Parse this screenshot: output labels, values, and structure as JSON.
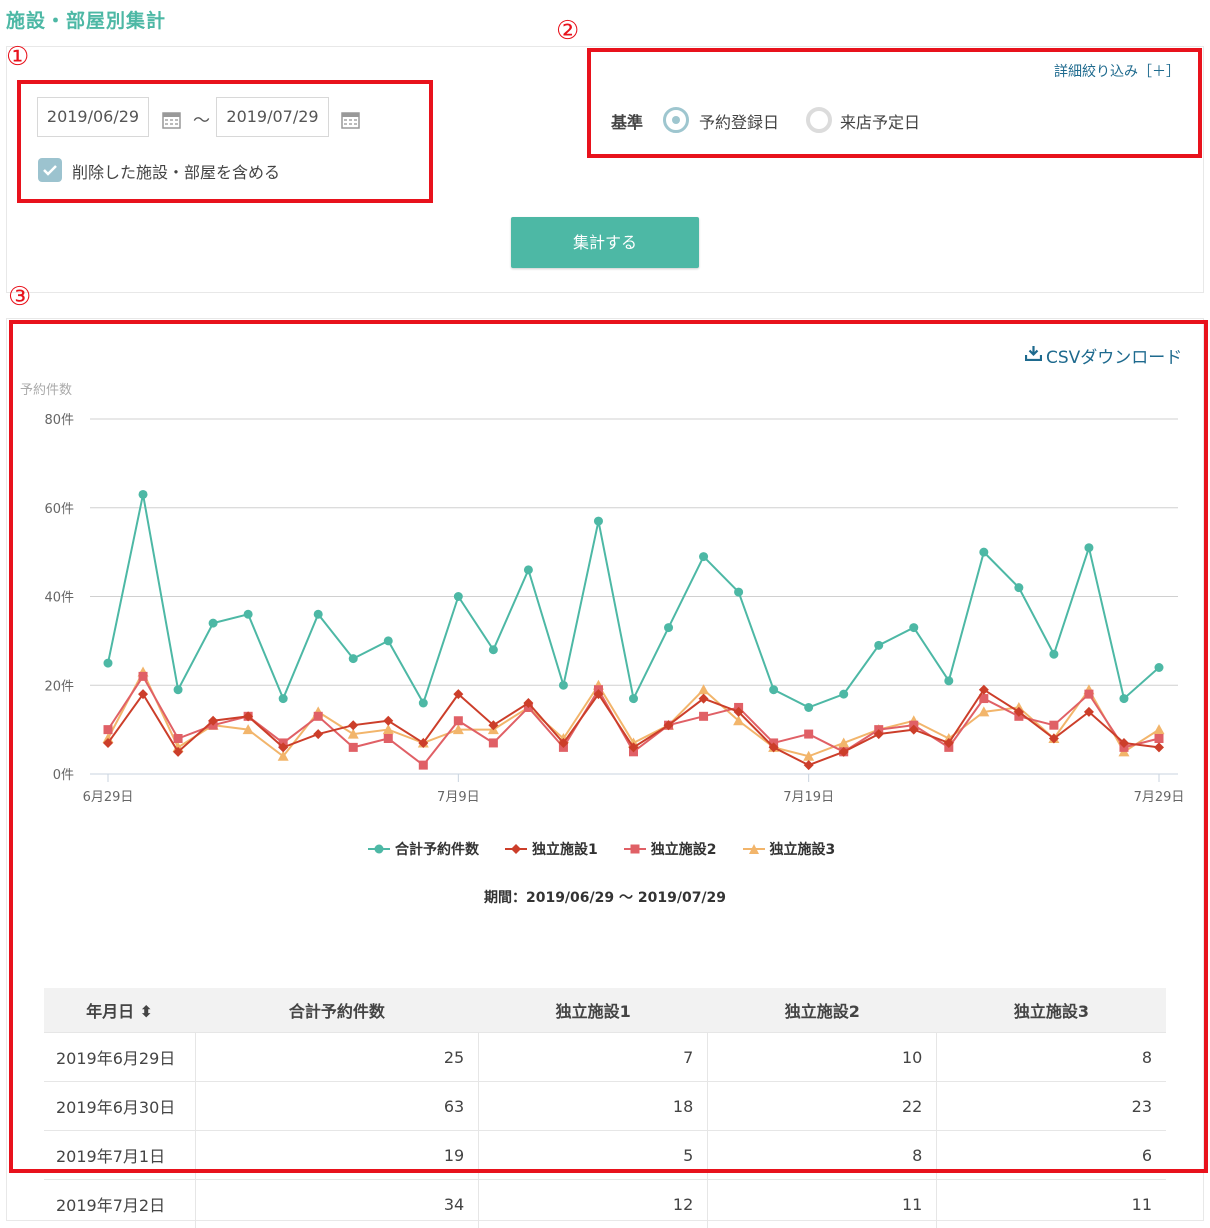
{
  "page_title": "施設・部屋別集計",
  "markers": {
    "one": "①",
    "two": "②",
    "three": "③"
  },
  "filters": {
    "start_date": "2019/06/29",
    "end_date": "2019/07/29",
    "separator": "～",
    "include_deleted_label": "削除した施設・部屋を含める",
    "include_deleted_checked": true,
    "detail_filter_link": "詳細絞り込み［＋］",
    "basis_label": "基準",
    "basis_options": [
      {
        "label": "予約登録日",
        "selected": true
      },
      {
        "label": "来店予定日",
        "selected": false
      }
    ],
    "submit_label": "集計する"
  },
  "csv_download_label": "CSVダウンロード",
  "colors": {
    "accent": "#4db8a5",
    "annotation_red": "#e8121c",
    "series1": "#4db8a5",
    "series2": "#cc3e2a",
    "series3": "#e06066",
    "series4": "#f2b56b"
  },
  "chart_data": {
    "type": "line",
    "ylabel": "予約件数",
    "ylim": [
      0,
      80
    ],
    "y_ticks": [
      "0件",
      "20件",
      "40件",
      "60件",
      "80件"
    ],
    "x_ticks": [
      "6月29日",
      "7月9日",
      "7月19日",
      "7月29日"
    ],
    "x": [
      "2019-06-29",
      "2019-06-30",
      "2019-07-01",
      "2019-07-02",
      "2019-07-03",
      "2019-07-04",
      "2019-07-05",
      "2019-07-06",
      "2019-07-07",
      "2019-07-08",
      "2019-07-09",
      "2019-07-10",
      "2019-07-11",
      "2019-07-12",
      "2019-07-13",
      "2019-07-14",
      "2019-07-15",
      "2019-07-16",
      "2019-07-17",
      "2019-07-18",
      "2019-07-19",
      "2019-07-20",
      "2019-07-21",
      "2019-07-22",
      "2019-07-23",
      "2019-07-24",
      "2019-07-25",
      "2019-07-26",
      "2019-07-27",
      "2019-07-28",
      "2019-07-29"
    ],
    "series": [
      {
        "name": "合計予約件数",
        "values": [
          25,
          63,
          19,
          34,
          36,
          17,
          36,
          26,
          30,
          16,
          40,
          28,
          46,
          20,
          57,
          17,
          33,
          49,
          41,
          19,
          15,
          18,
          29,
          33,
          21,
          50,
          42,
          27,
          51,
          17,
          24
        ]
      },
      {
        "name": "独立施設1",
        "values": [
          7,
          18,
          5,
          12,
          13,
          6,
          9,
          11,
          12,
          7,
          18,
          11,
          16,
          7,
          18,
          6,
          11,
          17,
          14,
          6,
          2,
          5,
          9,
          10,
          7,
          19,
          14,
          8,
          14,
          7,
          6
        ]
      },
      {
        "name": "独立施設2",
        "values": [
          10,
          22,
          8,
          11,
          13,
          7,
          13,
          6,
          8,
          2,
          12,
          7,
          15,
          6,
          19,
          5,
          11,
          13,
          15,
          7,
          9,
          5,
          10,
          11,
          6,
          17,
          13,
          11,
          18,
          6,
          8
        ]
      },
      {
        "name": "独立施設3",
        "values": [
          8,
          23,
          6,
          11,
          10,
          4,
          14,
          9,
          10,
          7,
          10,
          10,
          15,
          8,
          20,
          7,
          11,
          19,
          12,
          6,
          4,
          7,
          10,
          12,
          8,
          14,
          15,
          8,
          19,
          5,
          10
        ]
      }
    ],
    "caption": "期間：2019/06/29 ～ 2019/07/29"
  },
  "table": {
    "headers": [
      "年月日 ⬍",
      "合計予約件数",
      "独立施設1",
      "独立施設2",
      "独立施設3"
    ],
    "rows": [
      [
        "2019年6月29日",
        "25",
        "7",
        "10",
        "8"
      ],
      [
        "2019年6月30日",
        "63",
        "18",
        "22",
        "23"
      ],
      [
        "2019年7月1日",
        "19",
        "5",
        "8",
        "6"
      ],
      [
        "2019年7月2日",
        "34",
        "12",
        "11",
        "11"
      ]
    ]
  }
}
